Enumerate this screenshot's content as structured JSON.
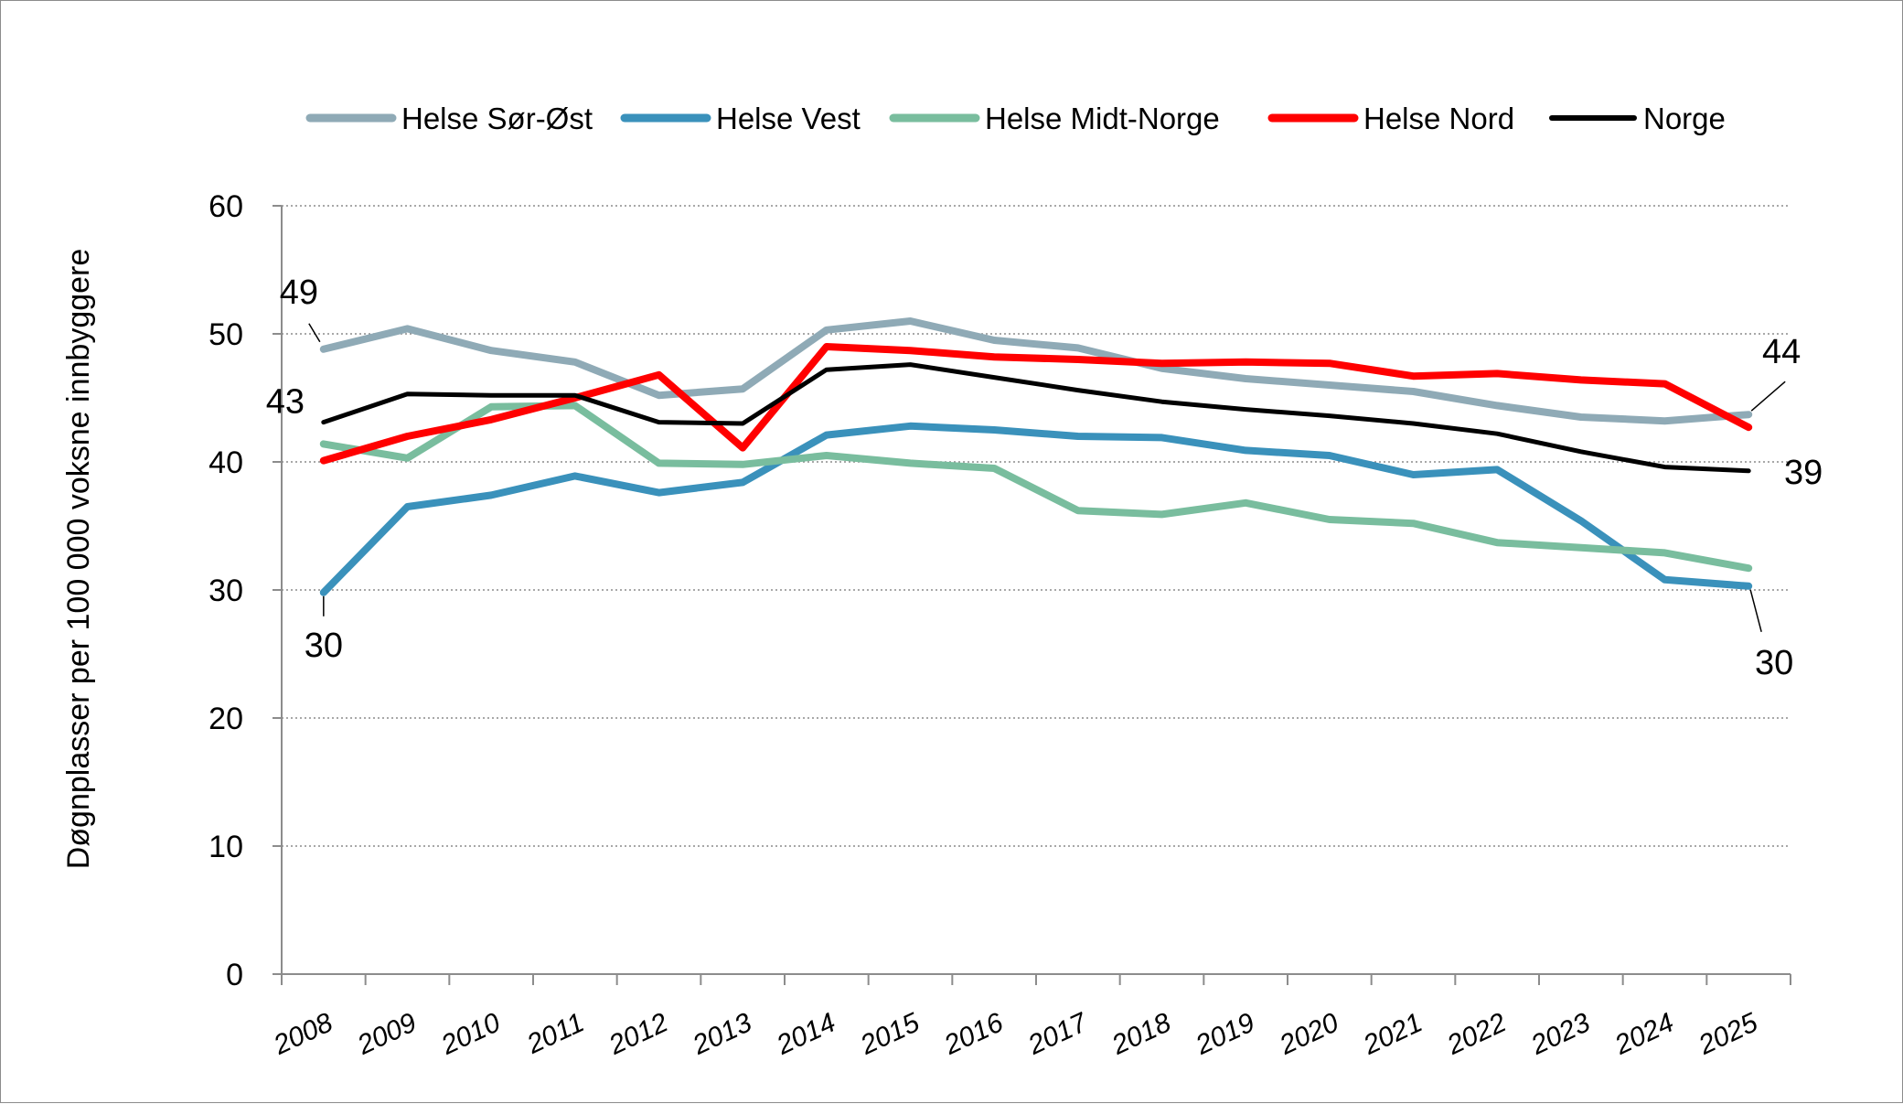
{
  "chart_data": {
    "type": "line",
    "title": "",
    "xlabel": "",
    "ylabel": "Døgnplasser per 100 000 voksne innbyggere",
    "ylim": [
      0,
      60
    ],
    "yticks": [
      "0",
      "10",
      "20",
      "30",
      "40",
      "50",
      "60"
    ],
    "grid": "horizontal dotted",
    "legend_position": "top",
    "categories": [
      "2008",
      "2009",
      "2010",
      "2011",
      "2012",
      "2013",
      "2014",
      "2015",
      "2016",
      "2017",
      "2018",
      "2019",
      "2020",
      "2021",
      "2022",
      "2023",
      "2024",
      "2025"
    ],
    "series": [
      {
        "name": "Helse Sør-Øst",
        "color": "#8faab6",
        "values": [
          48.8,
          50.4,
          48.7,
          47.8,
          45.2,
          45.7,
          50.3,
          51.0,
          49.5,
          48.9,
          47.3,
          46.5,
          46.0,
          45.5,
          44.4,
          43.5,
          43.2,
          43.7
        ]
      },
      {
        "name": "Helse Vest",
        "color": "#3a91bb",
        "values": [
          29.8,
          36.5,
          37.4,
          38.9,
          37.6,
          38.4,
          42.1,
          42.8,
          42.5,
          42.0,
          41.9,
          40.9,
          40.5,
          39.0,
          39.4,
          35.4,
          30.8,
          30.3
        ]
      },
      {
        "name": "Helse Midt-Norge",
        "color": "#79bd9e",
        "values": [
          41.4,
          40.3,
          44.3,
          44.4,
          39.9,
          39.8,
          40.5,
          39.9,
          39.5,
          36.2,
          35.9,
          36.8,
          35.5,
          35.2,
          33.7,
          33.3,
          32.9,
          31.7
        ]
      },
      {
        "name": "Helse Nord",
        "color": "#ff0000",
        "values": [
          40.1,
          42.0,
          43.3,
          45.0,
          46.8,
          41.1,
          49.0,
          48.7,
          48.2,
          48.0,
          47.7,
          47.8,
          47.7,
          46.7,
          46.9,
          46.4,
          46.1,
          42.7
        ]
      },
      {
        "name": "Norge",
        "color": "#000000",
        "values": [
          43.1,
          45.3,
          45.2,
          45.2,
          43.1,
          43.0,
          47.2,
          47.6,
          46.6,
          45.6,
          44.7,
          44.1,
          43.6,
          43.0,
          42.2,
          40.8,
          39.6,
          39.3
        ]
      }
    ],
    "annotations": [
      {
        "text": "49",
        "series": "Helse Sør-Øst",
        "category": "2008"
      },
      {
        "text": "43",
        "series": "Norge",
        "category": "2008"
      },
      {
        "text": "30",
        "series": "Helse Vest",
        "category": "2008"
      },
      {
        "text": "44",
        "series": "Helse Sør-Øst",
        "category": "2025"
      },
      {
        "text": "39",
        "series": "Norge",
        "category": "2025"
      },
      {
        "text": "30",
        "series": "Helse Vest",
        "category": "2025"
      }
    ]
  }
}
